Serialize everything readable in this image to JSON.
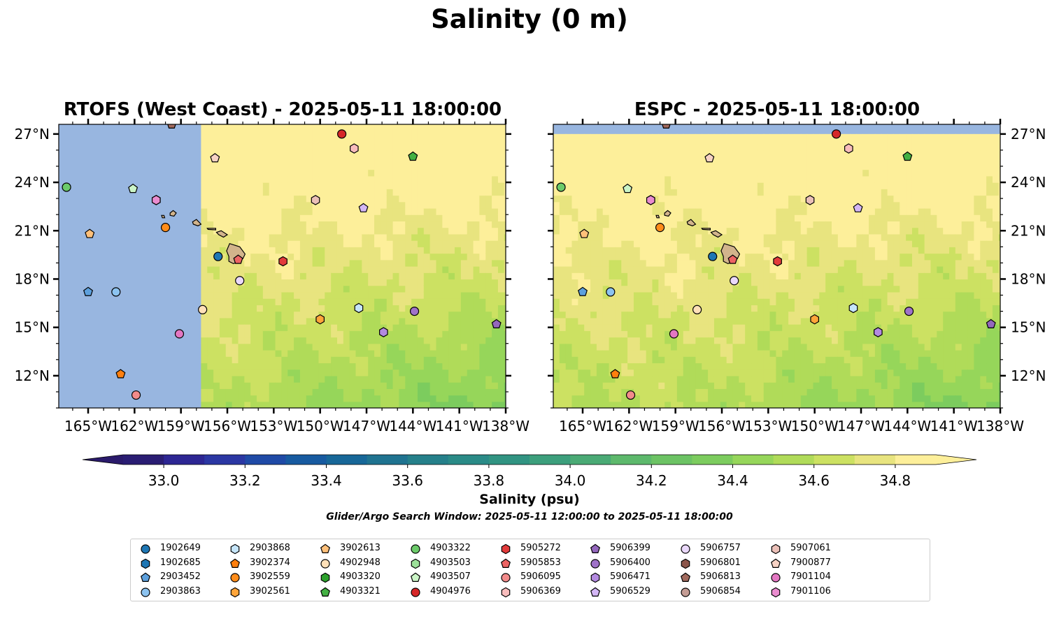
{
  "figure": {
    "title": "Salinity (0 m)",
    "colorbar_label": "Salinity (psu)",
    "search_window": "Glider/Argo Search Window: 2025-05-11 12:00:00 to 2025-05-11 18:00:00"
  },
  "chart_data": [
    {
      "type": "heatmap",
      "title": "RTOFS (West Coast) - 2025-05-11 18:00:00",
      "x_ticks": [
        "165°W",
        "162°W",
        "159°W",
        "156°W",
        "153°W",
        "150°W",
        "147°W",
        "144°W",
        "141°W",
        "138°W"
      ],
      "y_ticks": [
        "12°N",
        "15°N",
        "18°N",
        "21°N",
        "24°N",
        "27°N"
      ],
      "xlim": [
        -166.9,
        -138.0
      ],
      "ylim": [
        10.0,
        27.6
      ],
      "model_coverage_west_edge_lon": -157.8,
      "no_data_color": "#98b6e0"
    },
    {
      "type": "heatmap",
      "title": "ESPC - 2025-05-11 18:00:00",
      "x_ticks": [
        "165°W",
        "162°W",
        "159°W",
        "156°W",
        "153°W",
        "150°W",
        "147°W",
        "144°W",
        "141°W",
        "138°W"
      ],
      "y_ticks": [
        "12°N",
        "15°N",
        "18°N",
        "21°N",
        "24°N",
        "27°N"
      ],
      "xlim": [
        -166.9,
        -138.0
      ],
      "ylim": [
        10.0,
        27.6
      ],
      "model_coverage_north_edge_lat": 27.0,
      "no_data_color": "#98b6e0"
    }
  ],
  "colorbar": {
    "min": 32.9,
    "max": 34.9,
    "step": 0.1,
    "extend": "both",
    "ticks": [
      "33.0",
      "33.2",
      "33.4",
      "33.6",
      "33.8",
      "34.0",
      "34.2",
      "34.4",
      "34.6",
      "34.8"
    ],
    "colors": [
      "#2a1d73",
      "#2d2693",
      "#2b37a3",
      "#1f4aa6",
      "#175aa0",
      "#176798",
      "#1f7390",
      "#25808a",
      "#2a8b87",
      "#319482",
      "#3c9f7c",
      "#4aaa75",
      "#5db96c",
      "#6cc364",
      "#7ccc5e",
      "#96d65a",
      "#b0db59",
      "#cce162",
      "#e8e47f",
      "#fdef9a"
    ],
    "under_color": "#2a1a6b",
    "over_color": "#fdef9a"
  },
  "islands": [
    {
      "name": "Hawaii",
      "points": [
        [
          -156.05,
          19.75
        ],
        [
          -155.85,
          20.2
        ],
        [
          -155.2,
          20.0
        ],
        [
          -154.85,
          19.55
        ],
        [
          -155.0,
          19.25
        ],
        [
          -155.6,
          18.95
        ],
        [
          -155.9,
          19.1
        ],
        [
          -155.9,
          19.4
        ]
      ]
    },
    {
      "name": "Maui",
      "points": [
        [
          -156.7,
          20.9
        ],
        [
          -156.4,
          21.0
        ],
        [
          -156.0,
          20.75
        ],
        [
          -156.25,
          20.6
        ],
        [
          -156.55,
          20.75
        ]
      ]
    },
    {
      "name": "Molokai",
      "points": [
        [
          -157.3,
          21.15
        ],
        [
          -156.75,
          21.15
        ],
        [
          -156.75,
          21.05
        ],
        [
          -157.25,
          21.08
        ]
      ]
    },
    {
      "name": "Oahu",
      "points": [
        [
          -158.25,
          21.55
        ],
        [
          -158.0,
          21.7
        ],
        [
          -157.7,
          21.4
        ],
        [
          -157.9,
          21.3
        ],
        [
          -158.2,
          21.4
        ]
      ]
    },
    {
      "name": "Kauai",
      "points": [
        [
          -159.7,
          22.1
        ],
        [
          -159.5,
          22.25
        ],
        [
          -159.3,
          22.1
        ],
        [
          -159.45,
          21.9
        ],
        [
          -159.7,
          21.95
        ]
      ]
    },
    {
      "name": "Niihau",
      "points": [
        [
          -160.25,
          21.95
        ],
        [
          -160.1,
          21.95
        ],
        [
          -160.05,
          21.8
        ],
        [
          -160.2,
          21.8
        ]
      ]
    }
  ],
  "floats": [
    {
      "id": "1902649",
      "marker": "circle",
      "color": "#1f77b4",
      "lon": -156.6,
      "lat": 19.4
    },
    {
      "id": "1902685",
      "marker": "hexagon",
      "color": "#1f77b4",
      "lon": null,
      "lat": null
    },
    {
      "id": "2903452",
      "marker": "pentagon",
      "color": "#5da0dd",
      "lon": -165.0,
      "lat": 17.2
    },
    {
      "id": "2903863",
      "marker": "circle",
      "color": "#8cc3f0",
      "lon": -163.2,
      "lat": 17.2
    },
    {
      "id": "2903868",
      "marker": "hexagon",
      "color": "#c5e5fa",
      "lon": -147.5,
      "lat": 16.2
    },
    {
      "id": "3902374",
      "marker": "pentagon",
      "color": "#ff7f0e",
      "lon": -162.9,
      "lat": 12.1
    },
    {
      "id": "3902559",
      "marker": "circle",
      "color": "#ff8c1a",
      "lon": -160.0,
      "lat": 21.2
    },
    {
      "id": "3902561",
      "marker": "hexagon",
      "color": "#ffa53a",
      "lon": -150.0,
      "lat": 15.5
    },
    {
      "id": "3902613",
      "marker": "pentagon",
      "color": "#ffc07a",
      "lon": -164.9,
      "lat": 20.8
    },
    {
      "id": "4902948",
      "marker": "circle",
      "color": "#ffe0b8",
      "lon": -157.6,
      "lat": 16.1
    },
    {
      "id": "4903320",
      "marker": "hexagon",
      "color": "#2ca02c",
      "lon": -160.6,
      "lat": 22.9
    },
    {
      "id": "4903321",
      "marker": "pentagon",
      "color": "#43b043",
      "lon": -144.0,
      "lat": 25.6
    },
    {
      "id": "4903322",
      "marker": "circle",
      "color": "#6ccb6a",
      "lon": -166.4,
      "lat": 23.7
    },
    {
      "id": "4903503",
      "marker": "hexagon",
      "color": "#9de09a",
      "lon": null,
      "lat": null
    },
    {
      "id": "4903507",
      "marker": "pentagon",
      "color": "#cbf5c7",
      "lon": -162.1,
      "lat": 23.6
    },
    {
      "id": "4904976",
      "marker": "circle",
      "color": "#d62728",
      "lon": -148.6,
      "lat": 27.0
    },
    {
      "id": "5905272",
      "marker": "hexagon",
      "color": "#e23b3b",
      "lon": -152.4,
      "lat": 19.1
    },
    {
      "id": "5905853",
      "marker": "pentagon",
      "color": "#ed6464",
      "lon": -155.3,
      "lat": 19.2
    },
    {
      "id": "5906095",
      "marker": "circle",
      "color": "#f28b8b",
      "lon": -161.9,
      "lat": 10.8
    },
    {
      "id": "5906369",
      "marker": "hexagon",
      "color": "#f8bcbc",
      "lon": -147.8,
      "lat": 26.1
    },
    {
      "id": "5906399",
      "marker": "pentagon",
      "color": "#9467bd",
      "lon": -138.6,
      "lat": 15.2
    },
    {
      "id": "5906400",
      "marker": "circle",
      "color": "#9f72c8",
      "lon": -143.9,
      "lat": 16.0
    },
    {
      "id": "5906471",
      "marker": "hexagon",
      "color": "#b38ae0",
      "lon": -145.9,
      "lat": 14.7
    },
    {
      "id": "5906529",
      "marker": "pentagon",
      "color": "#d3b6f5",
      "lon": -147.2,
      "lat": 22.4
    },
    {
      "id": "5906757",
      "marker": "circle",
      "color": "#ead8fb",
      "lon": -155.2,
      "lat": 17.9
    },
    {
      "id": "5906801",
      "marker": "hexagon",
      "color": "#8c564b",
      "lon": null,
      "lat": null
    },
    {
      "id": "5906813",
      "marker": "pentagon",
      "color": "#a16a5e",
      "lon": -159.6,
      "lat": 27.6
    },
    {
      "id": "5906854",
      "marker": "circle",
      "color": "#c49c94",
      "lon": null,
      "lat": null
    },
    {
      "id": "5907061",
      "marker": "hexagon",
      "color": "#ebc0b8",
      "lon": -150.3,
      "lat": 22.9
    },
    {
      "id": "7900877",
      "marker": "pentagon",
      "color": "#f7d2c4",
      "lon": -156.8,
      "lat": 25.5
    },
    {
      "id": "7901104",
      "marker": "circle",
      "color": "#e377c2",
      "lon": -159.1,
      "lat": 14.6
    },
    {
      "id": "7901106",
      "marker": "hexagon",
      "color": "#ea8ccf",
      "lon": -160.6,
      "lat": 22.9
    }
  ]
}
